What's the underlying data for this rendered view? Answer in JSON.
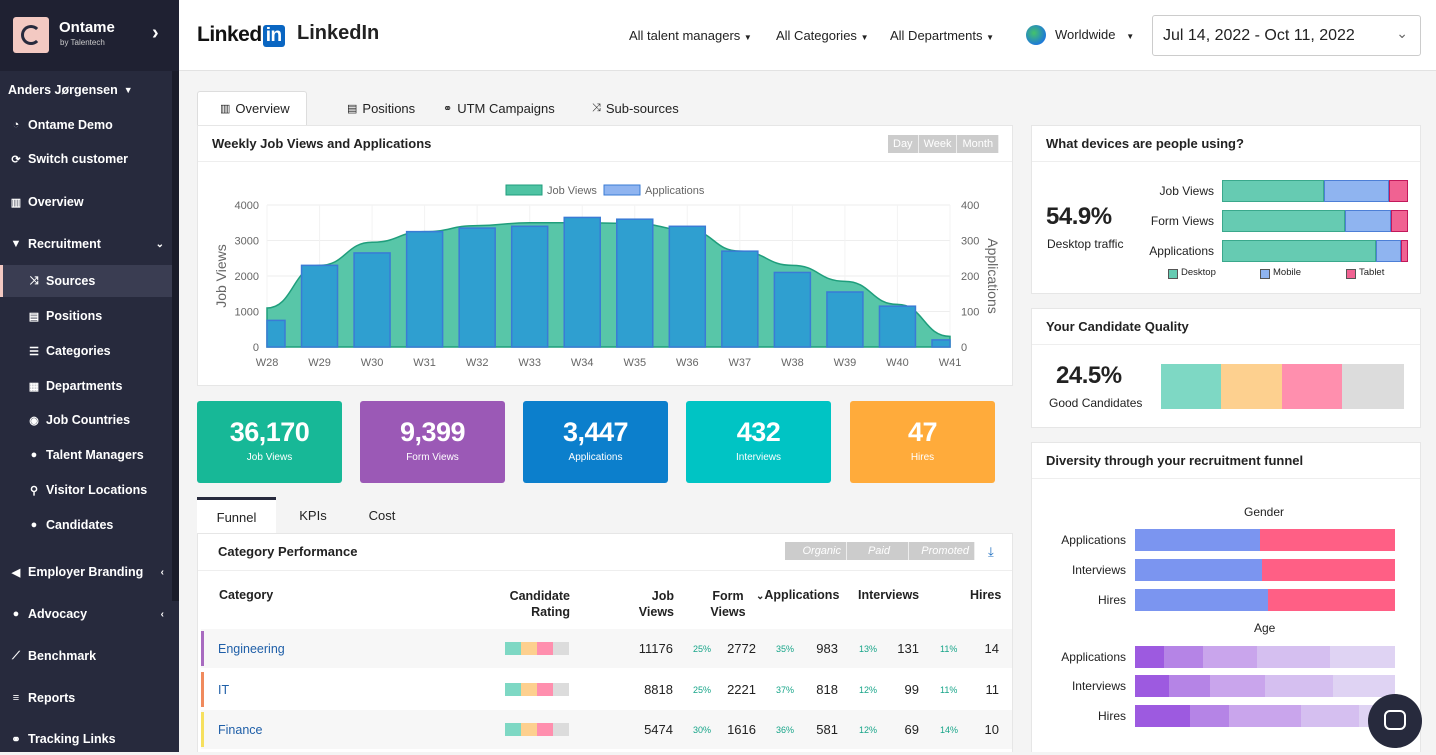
{
  "brand": {
    "name": "Ontame",
    "sub": "by Talentech"
  },
  "sidebar": {
    "user": "Anders Jørgensen",
    "items": [
      {
        "label": "Ontame Demo"
      },
      {
        "label": "Switch customer"
      },
      {
        "label": "Overview"
      },
      {
        "label": "Recruitment"
      },
      {
        "label": "Sources"
      },
      {
        "label": "Positions"
      },
      {
        "label": "Categories"
      },
      {
        "label": "Departments"
      },
      {
        "label": "Job Countries"
      },
      {
        "label": "Talent Managers"
      },
      {
        "label": "Visitor Locations"
      },
      {
        "label": "Candidates"
      },
      {
        "label": "Employer Branding"
      },
      {
        "label": "Advocacy"
      },
      {
        "label": "Benchmark"
      },
      {
        "label": "Reports"
      },
      {
        "label": "Tracking Links"
      }
    ]
  },
  "header": {
    "logo_text": "Linked",
    "logo_in": "in",
    "source_name": "LinkedIn",
    "filters": [
      "All talent managers",
      "All Categories",
      "All Departments"
    ],
    "region": "Worldwide",
    "date_range": "Jul 14, 2022 - Oct 11, 2022"
  },
  "tabs": [
    "Overview",
    "Positions",
    "UTM Campaigns",
    "Sub-sources"
  ],
  "weekly": {
    "title": "Weekly Job Views and Applications",
    "periods": [
      "Day",
      "Week",
      "Month"
    ]
  },
  "chart_data": {
    "type": "bar",
    "title": "",
    "categories": [
      "W28",
      "W29",
      "W30",
      "W31",
      "W32",
      "W33",
      "W34",
      "W35",
      "W36",
      "W37",
      "W38",
      "W39",
      "W40",
      "W41"
    ],
    "series": [
      {
        "name": "Job Views",
        "type": "area",
        "axis": "left",
        "color": "#3fbf9b",
        "values": [
          1100,
          2300,
          2950,
          3250,
          3420,
          3500,
          3500,
          3480,
          3300,
          2700,
          2300,
          1850,
          1200,
          300
        ]
      },
      {
        "name": "Applications",
        "type": "bar",
        "axis": "right",
        "color": "#2f9fd0",
        "values": [
          75,
          230,
          265,
          325,
          335,
          340,
          365,
          360,
          340,
          270,
          210,
          155,
          115,
          20
        ]
      }
    ],
    "ylabel": "Job Views",
    "y2label": "Applications",
    "ylim": [
      0,
      4000
    ],
    "y2lim": [
      0,
      400
    ],
    "yticks": [
      0,
      1000,
      2000,
      3000,
      4000
    ],
    "y2ticks": [
      0,
      100,
      200,
      300,
      400
    ],
    "grid": true,
    "legend": "top"
  },
  "kpis": [
    {
      "value": "36,170",
      "label": "Job Views",
      "color": "#17b897"
    },
    {
      "value": "9,399",
      "label": "Form Views",
      "color": "#9b59b6"
    },
    {
      "value": "3,447",
      "label": "Applications",
      "color": "#0c7fcc"
    },
    {
      "value": "432",
      "label": "Interviews",
      "color": "#00c4c4"
    },
    {
      "value": "47",
      "label": "Hires",
      "color": "#ffab3b"
    }
  ],
  "subtabs": [
    "Funnel",
    "KPIs",
    "Cost"
  ],
  "category_perf": {
    "title": "Category Performance",
    "filters": [
      "Organic",
      "Paid",
      "Promoted"
    ],
    "headers": {
      "category": "Category",
      "rating1": "Candidate",
      "rating2": "Rating",
      "jobviews1": "Job",
      "jobviews2": "Views",
      "formviews1": "Form",
      "formviews2": "Views",
      "applications": "Applications",
      "interviews": "Interviews",
      "hires": "Hires"
    },
    "rows": [
      {
        "name": "Engineering",
        "color": "#a86bc0",
        "job_views": "11176",
        "pct1": "25%",
        "form_views": "2772",
        "pct2": "35%",
        "applications": "983",
        "pct3": "13%",
        "interviews": "131",
        "pct4": "11%",
        "hires": "14"
      },
      {
        "name": "IT",
        "color": "#f08a5d",
        "job_views": "8818",
        "pct1": "25%",
        "form_views": "2221",
        "pct2": "37%",
        "applications": "818",
        "pct3": "12%",
        "interviews": "99",
        "pct4": "11%",
        "hires": "11"
      },
      {
        "name": "Finance",
        "color": "#f6e05e",
        "job_views": "5474",
        "pct1": "30%",
        "form_views": "1616",
        "pct2": "36%",
        "applications": "581",
        "pct3": "12%",
        "interviews": "69",
        "pct4": "14%",
        "hires": "10"
      }
    ]
  },
  "devices": {
    "title": "What devices are people using?",
    "big": "54.9%",
    "sub": "Desktop traffic",
    "rows": [
      {
        "label": "Job Views",
        "desktop": 0.55,
        "mobile": 0.35,
        "tablet": 0.1
      },
      {
        "label": "Form Views",
        "desktop": 0.66,
        "mobile": 0.25,
        "tablet": 0.09
      },
      {
        "label": "Applications",
        "desktop": 0.83,
        "mobile": 0.13,
        "tablet": 0.04
      }
    ],
    "legend": [
      "Desktop",
      "Mobile",
      "Tablet"
    ],
    "colors": [
      "#66cbb2",
      "#8fb4f0",
      "#f06292"
    ]
  },
  "quality": {
    "title": "Your Candidate Quality",
    "big": "24.5%",
    "sub": "Good Candidates",
    "colors": [
      "#7ed8c4",
      "#fdd08f",
      "#ff8fae",
      "#dcdcdc"
    ]
  },
  "diversity": {
    "title": "Diversity through your recruitment funnel",
    "gender_label": "Gender",
    "age_label": "Age",
    "gender_rows": [
      {
        "label": "Applications",
        "a": 0.48
      },
      {
        "label": "Interviews",
        "a": 0.49
      },
      {
        "label": "Hires",
        "a": 0.51
      }
    ],
    "age_rows": [
      {
        "label": "Applications",
        "parts": [
          0.11,
          0.15,
          0.21,
          0.28,
          0.25
        ]
      },
      {
        "label": "Interviews",
        "parts": [
          0.13,
          0.16,
          0.21,
          0.26,
          0.24
        ]
      },
      {
        "label": "Hires",
        "parts": [
          0.21,
          0.15,
          0.28,
          0.22,
          0.14
        ]
      }
    ],
    "gender_colors": [
      "#7b95f0",
      "#ff5f85"
    ],
    "age_colors": [
      "#9d5ae0",
      "#b584e6",
      "#c9a5ec",
      "#d5bff0",
      "#dfd3f3"
    ]
  }
}
